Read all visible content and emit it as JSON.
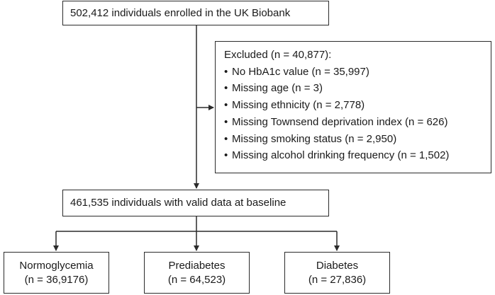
{
  "flowchart": {
    "enrolled": "502,412 individuals enrolled in the UK Biobank",
    "excluded": {
      "title": "Excluded (n = 40,877):",
      "items": [
        "No HbA1c value (n = 35,997)",
        "Missing age (n = 3)",
        "Missing ethnicity (n = 2,778)",
        "Missing Townsend deprivation index (n = 626)",
        "Missing smoking status (n = 2,950)",
        "Missing alcohol drinking frequency (n = 1,502)"
      ]
    },
    "valid": "461,535 individuals with valid data at baseline",
    "groups": [
      {
        "name": "Normoglycemia",
        "count": "(n = 36,9176)"
      },
      {
        "name": "Prediabetes",
        "count": "(n = 64,523)"
      },
      {
        "name": "Diabetes",
        "count": "(n = 27,836)"
      }
    ]
  },
  "colors": {
    "line": "#2b2b2b",
    "text": "#1a1a1a"
  }
}
